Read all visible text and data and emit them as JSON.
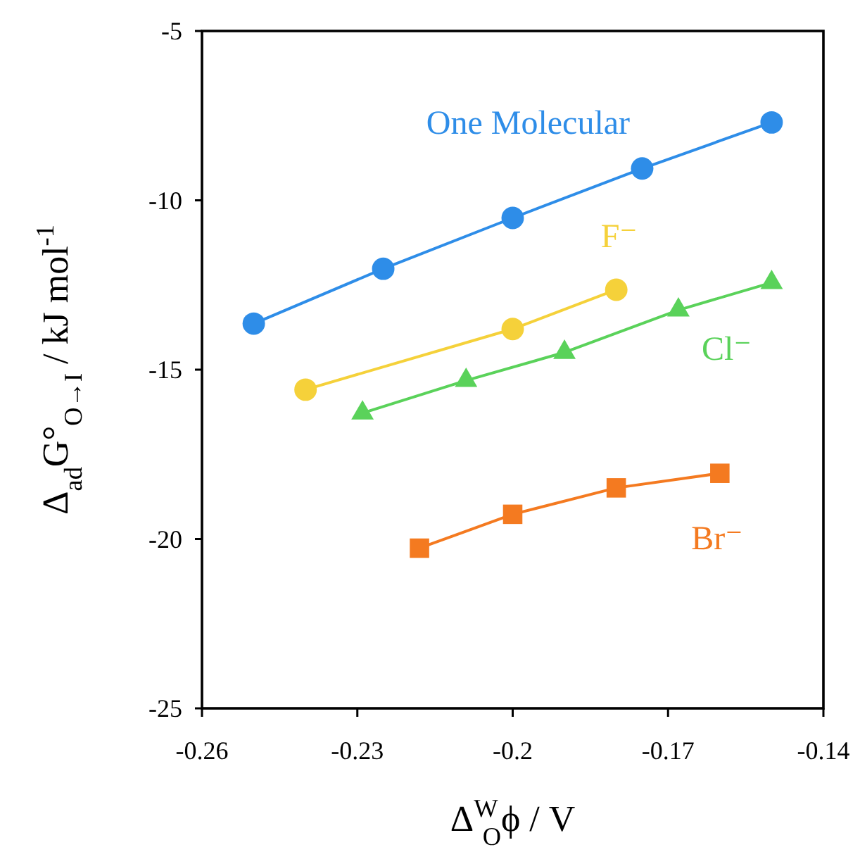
{
  "chart_data": {
    "type": "line",
    "xlabel": "Δ$^{W}$$_{O}$ϕ / V",
    "ylabel": "Δ$_{ad}$G°$_{O→I}$ / kJ mol$^{-1}$",
    "xlim": [
      -0.26,
      -0.14
    ],
    "xticks": [
      -0.26,
      -0.23,
      -0.2,
      -0.17,
      -0.14
    ],
    "ylim": [
      -25,
      -5
    ],
    "yticks": [
      -25,
      -20,
      -15,
      -10,
      -5
    ],
    "grid": false,
    "series": [
      {
        "name": "One Molecular",
        "color": "#2e8de8",
        "marker": "circle",
        "x": [
          -0.25,
          -0.225,
          -0.2,
          -0.175,
          -0.15
        ],
        "values": [
          -13.64,
          -12.02,
          -10.52,
          -9.06,
          -7.7
        ]
      },
      {
        "name": "F⁻",
        "color": "#f5d13a",
        "marker": "circle",
        "x": [
          -0.24,
          -0.2,
          -0.18
        ],
        "values": [
          -15.59,
          -13.8,
          -12.64
        ]
      },
      {
        "name": "Cl⁻",
        "color": "#5ad25a",
        "marker": "triangle",
        "x": [
          -0.229,
          -0.209,
          -0.19,
          -0.168,
          -0.15
        ],
        "values": [
          -16.28,
          -15.32,
          -14.49,
          -13.24,
          -12.43
        ]
      },
      {
        "name": "Br⁻",
        "color": "#f47a20",
        "marker": "square",
        "x": [
          -0.218,
          -0.2,
          -0.18,
          -0.16
        ],
        "values": [
          -20.27,
          -19.27,
          -18.49,
          -18.06
        ]
      }
    ]
  }
}
